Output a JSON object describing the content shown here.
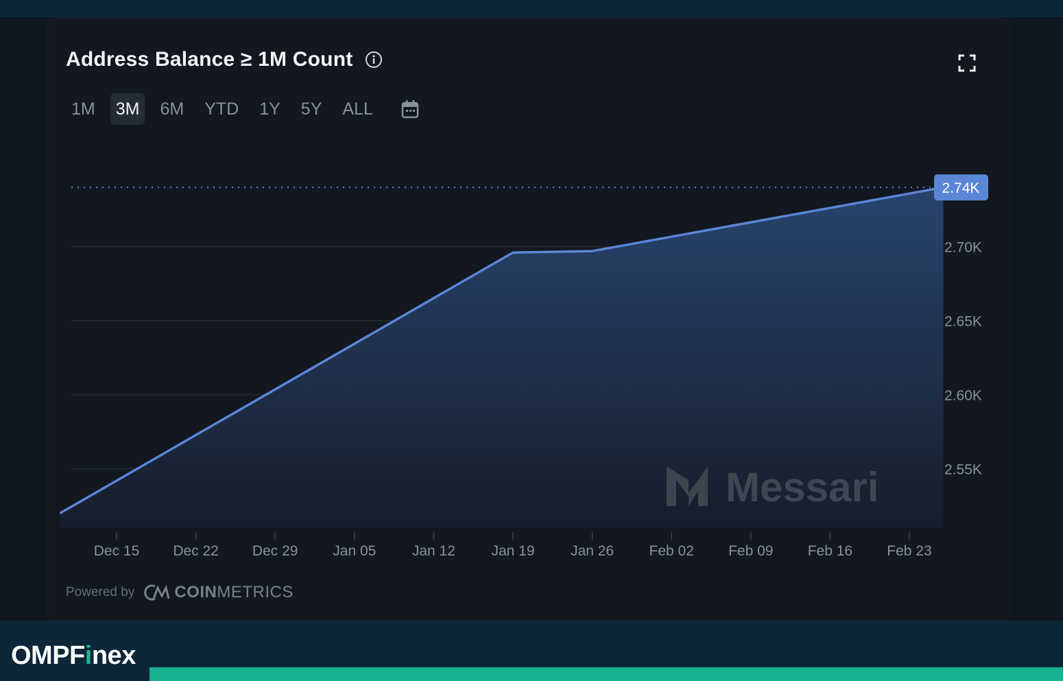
{
  "header": {
    "title": "Address Balance ≥ 1M Count",
    "info_icon": "info-icon",
    "expand_icon": "fullscreen-icon"
  },
  "ranges": {
    "items": [
      "1M",
      "3M",
      "6M",
      "YTD",
      "1Y",
      "5Y",
      "ALL"
    ],
    "selected": "3M",
    "calendar_icon": "calendar-icon"
  },
  "footer": {
    "powered_label": "Powered by",
    "provider_strong": "COIN",
    "provider_light": "METRICS"
  },
  "brand": {
    "prefix": "OMPF",
    "accent": "i",
    "suffix": "nex"
  },
  "watermark": "Messari",
  "colors": {
    "line": "#5b86d6",
    "fill_top": "#26416a",
    "label_bg": "#5b86d6",
    "accent_green": "#19b291"
  },
  "chart_data": {
    "type": "area",
    "x": [
      "Dec 10",
      "Jan 19",
      "Jan 26",
      "Feb 26"
    ],
    "values": [
      2520,
      2696,
      2697,
      2740
    ],
    "x_tick_labels": [
      "Dec 15",
      "Dec 22",
      "Dec 29",
      "Jan 05",
      "Jan 12",
      "Jan 19",
      "Jan 26",
      "Feb 02",
      "Feb 09",
      "Feb 16",
      "Feb 23"
    ],
    "y_tick_labels": [
      "2.55K",
      "2.60K",
      "2.65K",
      "2.70K"
    ],
    "y_ticks": [
      2550,
      2600,
      2650,
      2700
    ],
    "current_value_label": "2.74K",
    "current_value": 2740,
    "ylim": [
      2510,
      2760
    ],
    "grid": true,
    "y_axis_position": "right"
  }
}
